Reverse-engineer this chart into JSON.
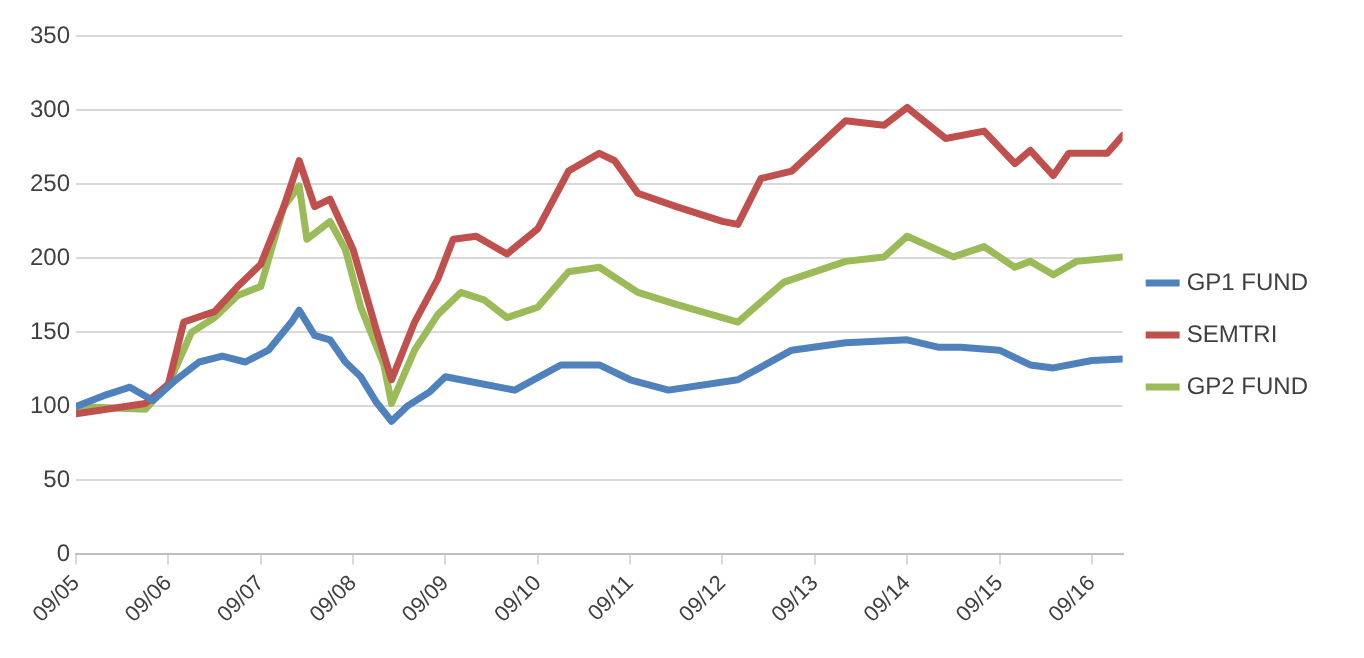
{
  "chart_data": {
    "type": "line",
    "xlim": [
      "2005-09",
      "2017-01"
    ],
    "ylim": [
      0,
      350
    ],
    "yticks": [
      0,
      50,
      100,
      150,
      200,
      250,
      300,
      350
    ],
    "xticks": [
      {
        "value": "2005-09",
        "label": "09/05"
      },
      {
        "value": "2006-09",
        "label": "09/06"
      },
      {
        "value": "2007-09",
        "label": "09/07"
      },
      {
        "value": "2008-09",
        "label": "09/08"
      },
      {
        "value": "2009-09",
        "label": "09/09"
      },
      {
        "value": "2010-09",
        "label": "09/10"
      },
      {
        "value": "2011-09",
        "label": "09/11"
      },
      {
        "value": "2012-09",
        "label": "09/12"
      },
      {
        "value": "2013-09",
        "label": "09/13"
      },
      {
        "value": "2014-09",
        "label": "09/14"
      },
      {
        "value": "2015-09",
        "label": "09/15"
      },
      {
        "value": "2016-09",
        "label": "09/16"
      }
    ],
    "grid": "y",
    "legend": "right",
    "marker": "none",
    "line_style": "solid",
    "series": [
      {
        "name": "GP1 FUND",
        "color": "#4f81bd",
        "x": [
          "2005-09",
          "2006-01",
          "2006-04",
          "2006-07",
          "2006-10",
          "2007-01",
          "2007-04",
          "2007-07",
          "2007-10",
          "2008-01",
          "2008-02",
          "2008-04",
          "2008-06",
          "2008-08",
          "2008-10",
          "2008-12",
          "2009-02",
          "2009-04",
          "2009-07",
          "2009-09",
          "2009-11",
          "2010-06",
          "2010-12",
          "2011-05",
          "2011-09",
          "2012-02",
          "2012-11",
          "2013-06",
          "2014-01",
          "2014-09",
          "2015-01",
          "2015-04",
          "2015-09",
          "2016-01",
          "2016-04",
          "2016-09",
          "2017-01"
        ],
        "values": [
          100,
          108,
          113,
          104,
          118,
          130,
          134,
          130,
          138,
          157,
          165,
          148,
          145,
          130,
          120,
          103,
          90,
          100,
          110,
          120,
          118,
          111,
          128,
          128,
          118,
          111,
          118,
          138,
          143,
          145,
          140,
          140,
          138,
          128,
          126,
          131,
          132
        ]
      },
      {
        "name": "SEMTRI",
        "color": "#c0504d",
        "x": [
          "2005-09",
          "2006-06",
          "2006-09",
          "2006-11",
          "2007-03",
          "2007-06",
          "2007-09",
          "2007-12",
          "2008-02",
          "2008-04",
          "2008-06",
          "2008-09",
          "2008-12",
          "2009-02",
          "2009-05",
          "2009-08",
          "2009-10",
          "2010-01",
          "2010-05",
          "2010-09",
          "2011-01",
          "2011-05",
          "2011-07",
          "2011-10",
          "2012-03",
          "2012-09",
          "2012-11",
          "2013-02",
          "2013-06",
          "2014-01",
          "2014-06",
          "2014-09",
          "2015-02",
          "2015-07",
          "2015-11",
          "2016-01",
          "2016-04",
          "2016-06",
          "2016-11",
          "2017-01"
        ],
        "values": [
          95,
          102,
          115,
          157,
          164,
          181,
          196,
          235,
          266,
          235,
          240,
          206,
          152,
          118,
          157,
          186,
          213,
          215,
          203,
          220,
          259,
          271,
          266,
          244,
          235,
          225,
          223,
          254,
          259,
          293,
          290,
          302,
          281,
          286,
          264,
          273,
          256,
          271,
          271,
          283
        ]
      },
      {
        "name": "GP2 FUND",
        "color": "#9bbb59",
        "x": [
          "2005-09",
          "2006-06",
          "2006-09",
          "2006-12",
          "2007-03",
          "2007-06",
          "2007-09",
          "2007-12",
          "2008-02",
          "2008-03",
          "2008-06",
          "2008-08",
          "2008-10",
          "2009-01",
          "2009-02",
          "2009-05",
          "2009-08",
          "2009-11",
          "2010-02",
          "2010-05",
          "2010-09",
          "2011-01",
          "2011-05",
          "2011-10",
          "2012-03",
          "2012-11",
          "2013-05",
          "2014-01",
          "2014-06",
          "2014-09",
          "2015-03",
          "2015-07",
          "2015-11",
          "2016-01",
          "2016-04",
          "2016-07",
          "2017-01"
        ],
        "values": [
          100,
          98,
          115,
          150,
          160,
          175,
          181,
          235,
          249,
          213,
          225,
          206,
          167,
          128,
          102,
          138,
          162,
          177,
          172,
          160,
          167,
          191,
          194,
          177,
          169,
          157,
          184,
          198,
          201,
          215,
          201,
          208,
          194,
          198,
          189,
          198,
          201
        ]
      }
    ]
  }
}
